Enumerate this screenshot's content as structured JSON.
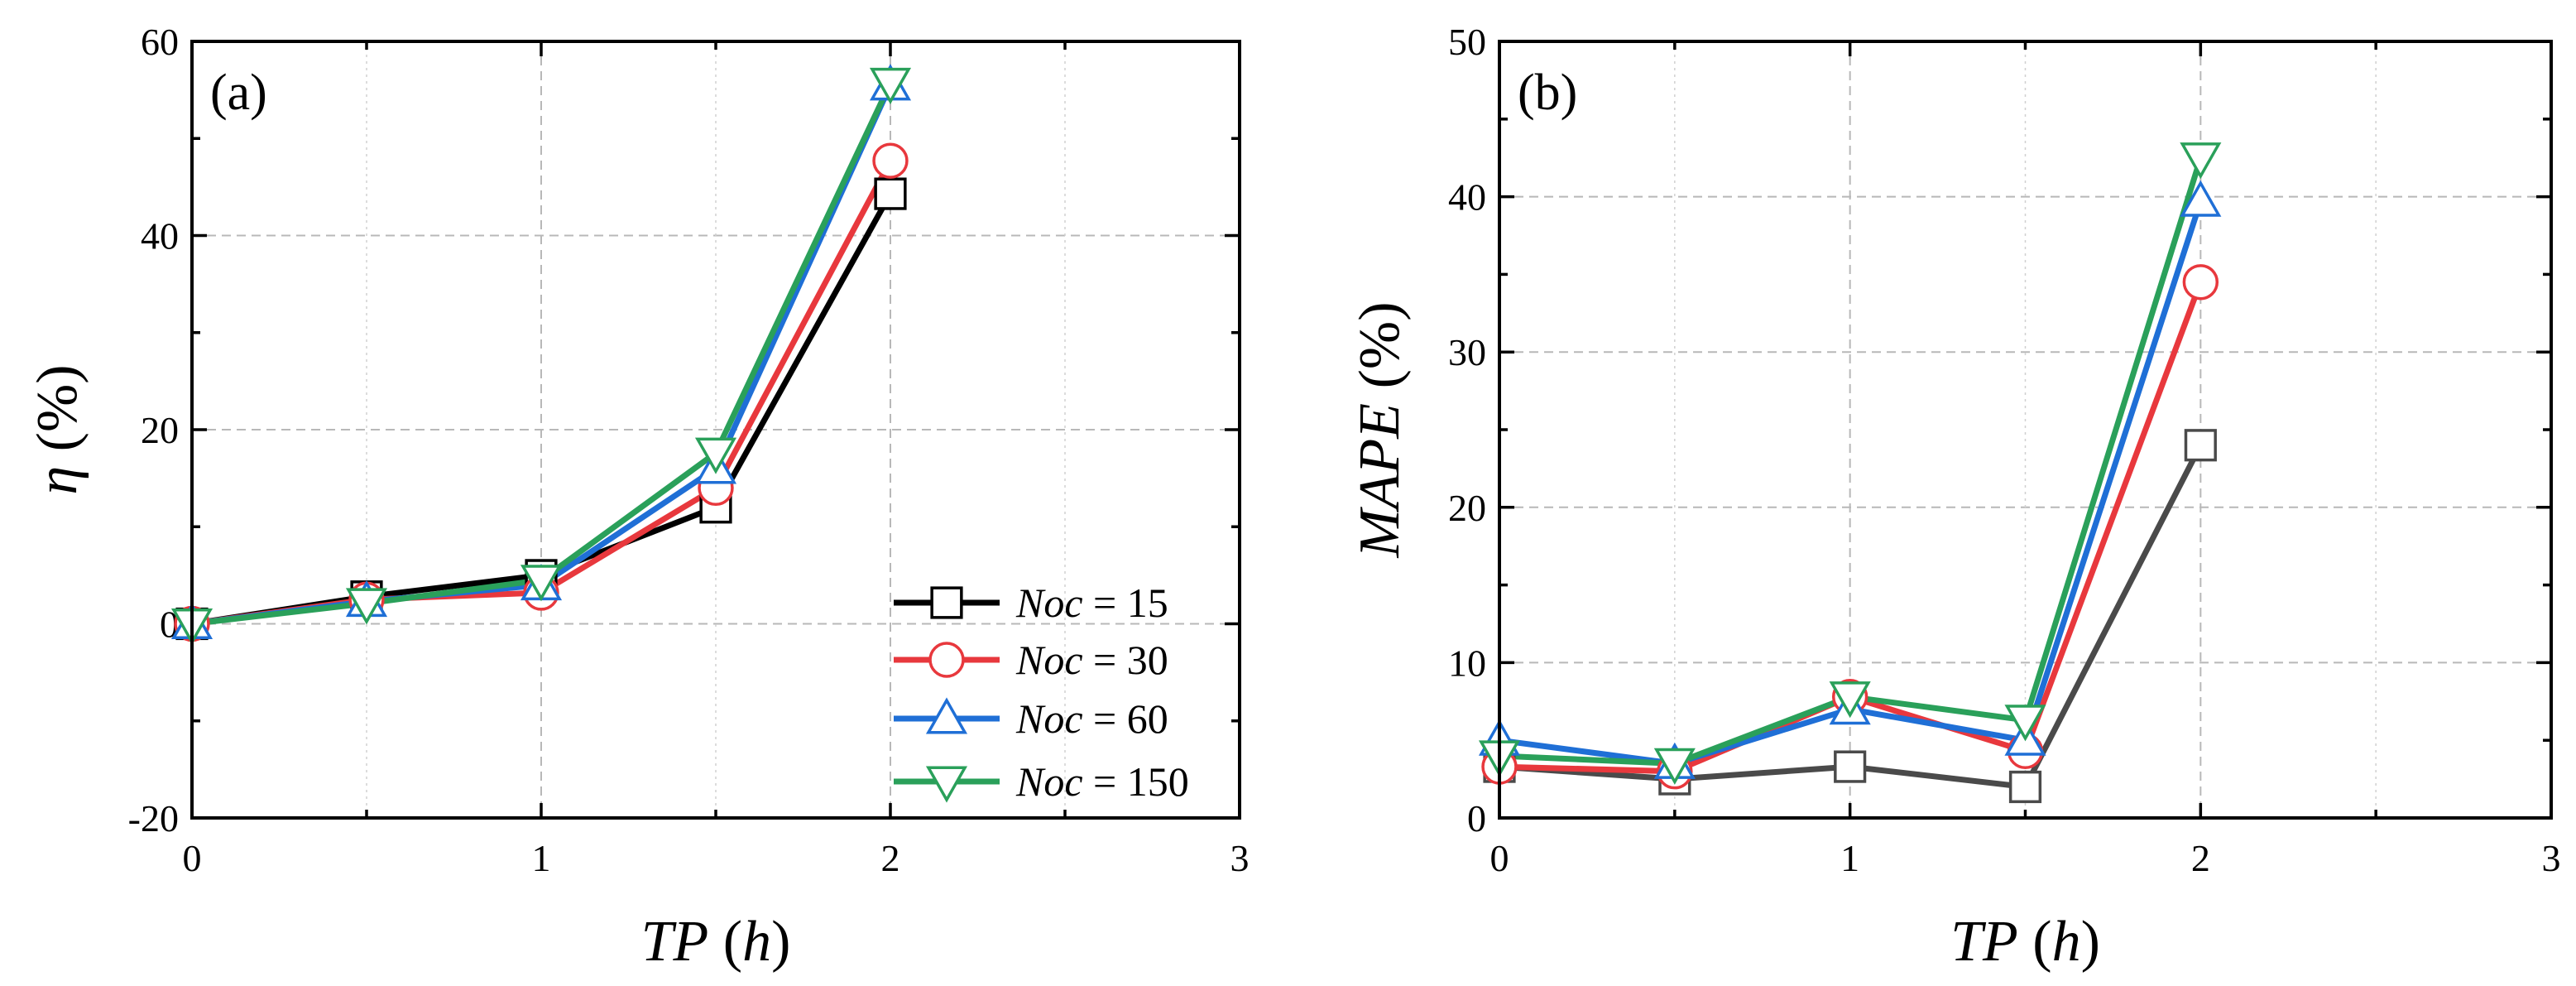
{
  "chart_data": [
    {
      "type": "line",
      "panel_label": "(a)",
      "xlabel": {
        "italic": "TP",
        "rest": " (",
        "italic2": "h",
        "close": ")"
      },
      "ylabel": {
        "italic": "η",
        "rest": " (%)"
      },
      "xlim": [
        0,
        3
      ],
      "ylim": [
        -20,
        60
      ],
      "xticks": [
        0,
        1,
        2,
        3
      ],
      "yticks": [
        -20,
        0,
        20,
        40,
        60
      ],
      "x": [
        0,
        0.5,
        1,
        1.5,
        2
      ],
      "legend_position": "bottom-right",
      "series": [
        {
          "name": "Noc = 15",
          "legend_italic": "Noc",
          "legend_rest": " = 15",
          "color": "#000000",
          "marker": "square",
          "values": [
            0,
            2.8,
            5,
            12,
            44.3
          ]
        },
        {
          "name": "Noc = 30",
          "legend_italic": "Noc",
          "legend_rest": " = 30",
          "color": "#e8383d",
          "marker": "circle",
          "values": [
            0,
            2.5,
            3.2,
            14,
            47.7
          ]
        },
        {
          "name": "Noc = 60",
          "legend_italic": "Noc",
          "legend_rest": " = 60",
          "color": "#1f6fd6",
          "marker": "triangle-up",
          "values": [
            0,
            2.3,
            4,
            16,
            55.5
          ]
        },
        {
          "name": "Noc = 150",
          "legend_italic": "Noc",
          "legend_rest": " = 150",
          "color": "#2aa05a",
          "marker": "triangle-down",
          "values": [
            0,
            2.1,
            4.5,
            17.6,
            55.7
          ]
        }
      ]
    },
    {
      "type": "line",
      "panel_label": "(b)",
      "xlabel": {
        "italic": "TP",
        "rest": " (",
        "italic2": "h",
        "close": ")"
      },
      "ylabel": {
        "italic": "MAPE",
        "rest": " (%)"
      },
      "xlim": [
        0,
        3
      ],
      "ylim": [
        0,
        50
      ],
      "xticks": [
        0,
        1,
        2,
        3
      ],
      "yticks": [
        0,
        10,
        20,
        30,
        40,
        50
      ],
      "x": [
        0,
        0.5,
        1,
        1.5,
        2
      ],
      "series": [
        {
          "name": "Noc = 15",
          "color": "#4a4a4a",
          "marker": "square",
          "values": [
            3.3,
            2.5,
            3.3,
            2.0,
            24.0
          ]
        },
        {
          "name": "Noc = 30",
          "color": "#e8383d",
          "marker": "circle",
          "values": [
            3.3,
            3.0,
            7.8,
            4.3,
            34.5
          ]
        },
        {
          "name": "Noc = 60",
          "color": "#1f6fd6",
          "marker": "triangle-up",
          "values": [
            5.0,
            3.5,
            7.0,
            5.0,
            39.7
          ]
        },
        {
          "name": "Noc = 150",
          "color": "#2aa05a",
          "marker": "triangle-down",
          "values": [
            4.0,
            3.5,
            7.8,
            6.3,
            42.5
          ]
        }
      ]
    }
  ]
}
